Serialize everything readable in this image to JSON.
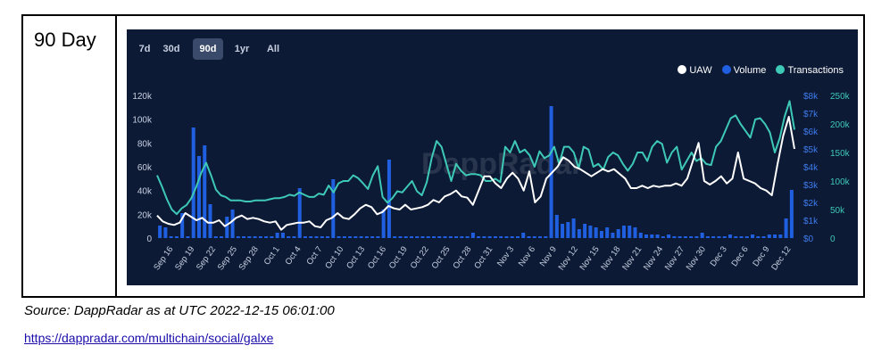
{
  "row_label": "90 Day",
  "tabs": [
    {
      "label": "7d",
      "active": false
    },
    {
      "label": "30d",
      "active": false
    },
    {
      "label": "90d",
      "active": true
    },
    {
      "label": "1yr",
      "active": false
    },
    {
      "label": "All",
      "active": false
    }
  ],
  "watermark": "DappRadar",
  "source_text": "Source: DappRadar as at UTC 2022-12-15 06:01:00",
  "link_text": "https://dappradar.com/multichain/social/galxe",
  "colors": {
    "panel_bg": "#0c1a35",
    "uaw": "#ffffff",
    "volume": "#1f5fe0",
    "transactions": "#3ec9b6",
    "axis_text": "#c7cfe0",
    "right_axis_blue": "#3f7cf0",
    "right_axis_teal": "#3ec9b6"
  },
  "chart_data": {
    "type": "line",
    "x_tick_labels": [
      "Sep 16",
      "Sep 19",
      "Sep 22",
      "Sep 25",
      "Sep 28",
      "Oct 1",
      "Oct 4",
      "Oct 7",
      "Oct 10",
      "Oct 13",
      "Oct 16",
      "Oct 19",
      "Oct 22",
      "Oct 25",
      "Oct 28",
      "Oct 31",
      "Nov 3",
      "Nov 6",
      "Nov 9",
      "Nov 12",
      "Nov 15",
      "Nov 18",
      "Nov 21",
      "Nov 24",
      "Nov 27",
      "Nov 30",
      "Dec 3",
      "Dec 6",
      "Dec 9",
      "Dec 12"
    ],
    "y_left_ticks": [
      "0",
      "20k",
      "40k",
      "60k",
      "80k",
      "100k",
      "120k"
    ],
    "y_left_range": [
      0,
      120000
    ],
    "y_volume_ticks": [
      "$0",
      "$1k",
      "$2k",
      "$3k",
      "$4k",
      "$5k",
      "$6k",
      "$7k",
      "$8k"
    ],
    "y_volume_range": [
      0,
      8000
    ],
    "y_tx_ticks": [
      "0",
      "50k",
      "100k",
      "150k",
      "200k",
      "250k"
    ],
    "y_tx_range": [
      0,
      250000
    ],
    "legend": [
      "UAW",
      "Volume",
      "Transactions"
    ],
    "legend_position": "top-right",
    "grid": false,
    "series": [
      {
        "name": "UAW",
        "axis": "left",
        "values": [
          19000,
          14000,
          12000,
          11000,
          13000,
          21000,
          18000,
          15000,
          17000,
          13000,
          13000,
          15000,
          10000,
          13000,
          17000,
          19000,
          16000,
          17000,
          16000,
          14000,
          13000,
          14000,
          7000,
          11000,
          12000,
          13000,
          13000,
          14000,
          10000,
          9000,
          15000,
          17000,
          21000,
          17000,
          16000,
          20000,
          25000,
          28000,
          26000,
          20000,
          22000,
          27000,
          25000,
          24000,
          28000,
          24000,
          25000,
          26000,
          28000,
          32000,
          30000,
          35000,
          37000,
          40000,
          35000,
          34000,
          28000,
          40000,
          52000,
          52000,
          46000,
          42000,
          50000,
          55000,
          50000,
          40000,
          56000,
          30000,
          35000,
          50000,
          55000,
          60000,
          68000,
          65000,
          60000,
          58000,
          55000,
          52000,
          55000,
          58000,
          56000,
          58000,
          54000,
          50000,
          42000,
          42000,
          44000,
          42000,
          44000,
          43000,
          44000,
          44000,
          46000,
          44000,
          50000,
          65000,
          80000,
          48000,
          45000,
          48000,
          52000,
          46000,
          50000,
          72000,
          50000,
          48000,
          46000,
          42000,
          40000,
          36000,
          62000,
          86000,
          102000,
          75000
        ]
      },
      {
        "name": "Volume",
        "axis": "right_volume",
        "values": [
          700,
          600,
          100,
          100,
          1400,
          100,
          6200,
          4600,
          5200,
          1900,
          100,
          100,
          1200,
          1600,
          100,
          100,
          100,
          100,
          100,
          100,
          100,
          300,
          300,
          100,
          100,
          2800,
          100,
          100,
          100,
          100,
          100,
          3300,
          100,
          100,
          100,
          100,
          100,
          100,
          100,
          100,
          1600,
          4400,
          100,
          100,
          100,
          100,
          100,
          100,
          100,
          100,
          100,
          100,
          100,
          100,
          100,
          100,
          300,
          100,
          100,
          100,
          100,
          100,
          100,
          100,
          100,
          300,
          100,
          100,
          100,
          100,
          7400,
          1300,
          800,
          900,
          1100,
          500,
          800,
          700,
          600,
          400,
          600,
          300,
          500,
          700,
          700,
          600,
          300,
          200,
          200,
          200,
          100,
          200,
          100,
          100,
          100,
          100,
          100,
          300,
          100,
          100,
          100,
          100,
          200,
          100,
          100,
          100,
          200,
          100,
          100,
          200,
          200,
          200,
          1100,
          2700
        ]
      },
      {
        "name": "Transactions",
        "axis": "right_tx",
        "values": [
          110000,
          90000,
          68000,
          50000,
          42000,
          52000,
          58000,
          70000,
          90000,
          114000,
          132000,
          110000,
          85000,
          75000,
          72000,
          66000,
          66000,
          66000,
          64000,
          64000,
          66000,
          66000,
          66000,
          68000,
          70000,
          70000,
          72000,
          76000,
          74000,
          80000,
          76000,
          72000,
          72000,
          78000,
          76000,
          92000,
          80000,
          96000,
          100000,
          100000,
          110000,
          105000,
          96000,
          86000,
          110000,
          126000,
          72000,
          62000,
          70000,
          82000,
          80000,
          90000,
          100000,
          82000,
          75000,
          98000,
          140000,
          170000,
          160000,
          130000,
          100000,
          130000,
          118000,
          110000,
          112000,
          112000,
          110000,
          100000,
          100000,
          104000,
          98000,
          160000,
          150000,
          170000,
          150000,
          155000,
          145000,
          125000,
          152000,
          140000,
          145000,
          160000,
          130000,
          160000,
          160000,
          150000,
          122000,
          160000,
          155000,
          125000,
          130000,
          120000,
          142000,
          150000,
          145000,
          130000,
          118000,
          130000,
          150000,
          150000,
          135000,
          160000,
          170000,
          165000,
          132000,
          150000,
          160000,
          120000,
          135000,
          150000,
          135000,
          140000,
          130000,
          128000,
          160000,
          170000,
          190000,
          210000,
          215000,
          200000,
          188000,
          176000,
          208000,
          210000,
          200000,
          185000,
          150000,
          175000,
          213000,
          240000,
          190000
        ]
      }
    ]
  }
}
